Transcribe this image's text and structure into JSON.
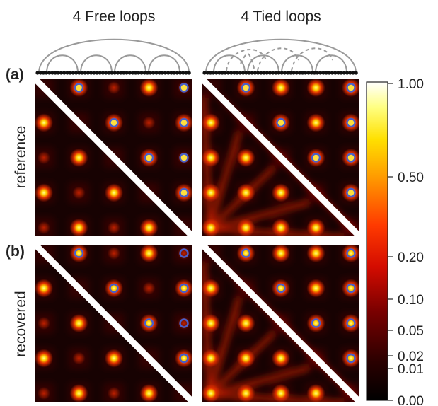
{
  "titles": {
    "left": "4 Free loops",
    "right": "4 Tied loops"
  },
  "panel_labels": {
    "a": "(a)",
    "b": "(b)"
  },
  "row_labels": {
    "top": "reference",
    "bottom": "recovered"
  },
  "colorbar": {
    "ticks": [
      "1.00",
      "0.50",
      "0.20",
      "0.10",
      "0.05",
      "0.02",
      "0.01",
      "0.00"
    ],
    "colormap": "hot"
  },
  "colors": {
    "arc": "#9a9a9a",
    "bead": "#111111",
    "diag": "#ffffff",
    "marker_ring": "#4a5fc8",
    "background": "#170202"
  }
}
